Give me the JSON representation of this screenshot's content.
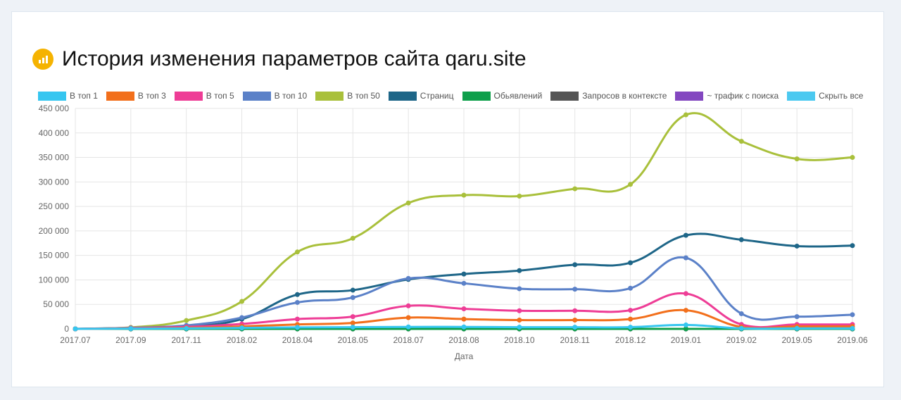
{
  "header": {
    "title": "История изменения параметров сайта qaru.site",
    "icon": "bar-chart-icon"
  },
  "colors": {
    "icon_bg": "#f5b301",
    "grid": "#e5e5e5"
  },
  "chart_data": {
    "type": "line",
    "xlabel": "Дата",
    "ylabel": "",
    "ylim": [
      0,
      450000
    ],
    "yticks": [
      0,
      50000,
      100000,
      150000,
      200000,
      250000,
      300000,
      350000,
      400000,
      450000
    ],
    "ytick_labels": [
      "0",
      "50 000",
      "100 000",
      "150 000",
      "200 000",
      "250 000",
      "300 000",
      "350 000",
      "400 000",
      "450 000"
    ],
    "categories": [
      "2017.07",
      "2017.09",
      "2017.11",
      "2018.02",
      "2018.04",
      "2018.05",
      "2018.07",
      "2018.08",
      "2018.10",
      "2018.11",
      "2018.12",
      "2019.01",
      "2019.02",
      "2019.05",
      "2019.06"
    ],
    "legend_position": "top",
    "grid": true,
    "series": [
      {
        "name": "В топ 1",
        "color": "#36c6f0",
        "values": [
          0,
          500,
          1000,
          2000,
          3000,
          3500,
          4000,
          4000,
          3500,
          3500,
          3500,
          8000,
          1000,
          1000,
          1000
        ]
      },
      {
        "name": "В топ 3",
        "color": "#f26f1b",
        "values": [
          0,
          800,
          2000,
          5000,
          9000,
          12000,
          23000,
          20000,
          18000,
          18000,
          20000,
          38000,
          4000,
          5000,
          5000
        ]
      },
      {
        "name": "В топ 5",
        "color": "#ee3d96",
        "values": [
          0,
          1500,
          4000,
          10000,
          20000,
          25000,
          47000,
          41000,
          37000,
          37000,
          38000,
          72000,
          9000,
          9000,
          9000
        ]
      },
      {
        "name": "В топ 10",
        "color": "#5b81c8",
        "values": [
          0,
          2000,
          7000,
          23000,
          54000,
          64000,
          103000,
          93000,
          82000,
          81000,
          83000,
          145000,
          31000,
          25000,
          29000
        ]
      },
      {
        "name": "В топ 50",
        "color": "#a9c03b",
        "values": [
          0,
          3000,
          17000,
          56000,
          157000,
          185000,
          257000,
          273000,
          271000,
          286000,
          295000,
          437000,
          383000,
          347000,
          350000
        ]
      },
      {
        "name": "Страниц",
        "color": "#1e6688",
        "values": [
          0,
          2000,
          5000,
          20000,
          70000,
          79000,
          101000,
          112000,
          119000,
          131000,
          135000,
          191000,
          182000,
          169000,
          170000
        ]
      },
      {
        "name": "Обьявлений",
        "color": "#0e9f4b",
        "values": [
          0,
          0,
          0,
          0,
          0,
          0,
          0,
          0,
          0,
          0,
          0,
          0,
          0,
          0,
          0
        ]
      },
      {
        "name": "Запросов в контексте",
        "color": "#555555",
        "values": [
          0,
          0,
          0,
          0,
          0,
          0,
          0,
          0,
          0,
          0,
          0,
          0,
          0,
          0,
          0
        ]
      },
      {
        "name": "~ трафик с поиска",
        "color": "#8347c0",
        "values": [
          0,
          0,
          0,
          0,
          0,
          0,
          0,
          0,
          0,
          0,
          0,
          0,
          0,
          0,
          0
        ]
      }
    ],
    "hide_all_label": "Скрыть все",
    "hide_all_color": "#4cc9f0"
  }
}
